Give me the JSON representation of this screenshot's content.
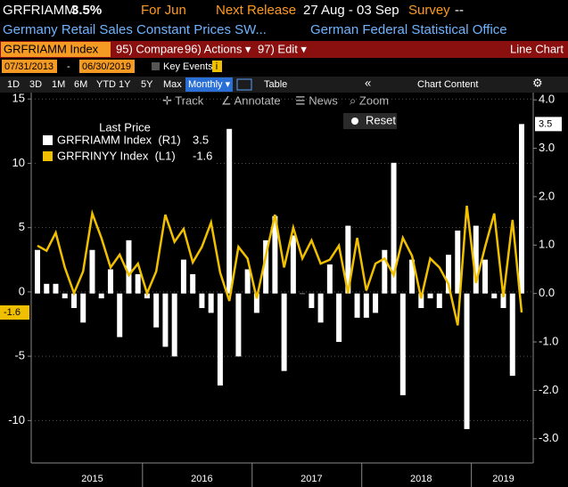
{
  "header": {
    "ticker": "GRFRIAMM",
    "last": "3.5%",
    "period": "For Jun",
    "release_label": "Next Release",
    "release_dates": "27 Aug - 03 Sep",
    "survey_label": "Survey",
    "survey_value": "--",
    "description": "Germany Retail Sales Constant Prices SW...",
    "source": "German Federal Statistical Office"
  },
  "menu": {
    "security": "GRFRIAMM Index",
    "compare": "95) Compare",
    "actions": "96) Actions ▾",
    "edit": "97) Edit ▾",
    "view": "Line Chart"
  },
  "range": {
    "start": "07/31/2013",
    "dash": "-",
    "end": "06/30/2019",
    "key_events": "Key Events",
    "info": "i"
  },
  "toolbar": {
    "periods": [
      "1D",
      "3D",
      "1M",
      "6M",
      "YTD",
      "1Y",
      "5Y",
      "Max"
    ],
    "frequency": "Monthly ▾",
    "table": "Table",
    "collapse": "«",
    "content": "Chart Content",
    "settings": "⚙"
  },
  "chart_tools": {
    "track": "✛ Track",
    "annotate": "∠ Annotate",
    "news": "☰ News",
    "zoom": "⌕ Zoom",
    "reset": "Reset"
  },
  "chart_data": {
    "type": "bar",
    "legend_title": "Last Price",
    "grid": true,
    "categories": [
      null,
      null,
      null,
      null,
      null,
      null,
      "2015",
      null,
      null,
      null,
      null,
      null,
      null,
      null,
      null,
      null,
      null,
      null,
      "2016",
      null,
      null,
      null,
      null,
      null,
      null,
      null,
      null,
      null,
      null,
      null,
      "2017",
      null,
      null,
      null,
      null,
      null,
      null,
      null,
      null,
      null,
      null,
      null,
      "2018",
      null,
      null,
      null,
      null,
      null,
      null,
      null,
      null,
      "2019",
      null,
      null
    ],
    "ylim": [
      -13.3,
      15.5
    ],
    "yticks": [
      15,
      10,
      5,
      0,
      -5,
      -10
    ],
    "y2lim": [
      -3.5,
      4.15
    ],
    "y2ticks": [
      {
        "value": 4,
        "label": "4.0"
      },
      {
        "value": 3,
        "label": "3.0"
      },
      {
        "value": 2,
        "label": "2.0"
      },
      {
        "value": 1,
        "label": "1.0"
      },
      {
        "value": 0,
        "label": "0.0"
      },
      {
        "value": -1,
        "label": "-1.0"
      },
      {
        "value": -2,
        "label": "-2.0"
      },
      {
        "value": -3,
        "label": "-3.0"
      }
    ],
    "series": [
      {
        "name": "GRFRIAMM Index  (R1)",
        "color": "#ffffff",
        "type": "bar",
        "axis": "y2",
        "values": [
          0.9,
          0.2,
          0.2,
          -0.1,
          -0.3,
          -0.6,
          0.9,
          -0.1,
          0.5,
          -0.9,
          1.1,
          0.4,
          -0.1,
          -0.7,
          -1.1,
          -1.3,
          0.7,
          0.4,
          -0.3,
          -0.4,
          -1.9,
          3.4,
          -1.3,
          0.5,
          -0.4,
          1.1,
          1.6,
          -1.6,
          1.2,
          0.0,
          -0.3,
          -0.6,
          0.6,
          -1.0,
          1.4,
          -0.5,
          -0.5,
          -0.4,
          0.9,
          2.7,
          -2.1,
          0.7,
          -0.3,
          -0.1,
          -0.3,
          0.8,
          1.3,
          -2.8,
          1.4,
          0.7,
          -0.1,
          -0.3,
          -1.7,
          3.5
        ]
      },
      {
        "name": "GRFRINYY Index  (L1)",
        "color": "#f0c000",
        "type": "line",
        "values": [
          3.6,
          3.2,
          4.6,
          1.9,
          -0.1,
          1.6,
          6.1,
          4.2,
          1.9,
          2.9,
          1.3,
          2.2,
          -0.1,
          1.6,
          6.0,
          3.9,
          4.9,
          2.3,
          3.5,
          5.4,
          1.5,
          -0.7,
          3.5,
          2.6,
          -0.5,
          2.8,
          6.0,
          1.9,
          5.0,
          2.6,
          4.0,
          2.2,
          2.5,
          3.6,
          -0.1,
          4.2,
          0.1,
          2.2,
          2.6,
          1.3,
          4.2,
          2.8,
          -0.5,
          2.6,
          1.9,
          0.6,
          -2.6,
          6.7,
          0.7,
          3.5,
          6.1,
          -0.4,
          5.6,
          -1.6
        ]
      }
    ]
  }
}
